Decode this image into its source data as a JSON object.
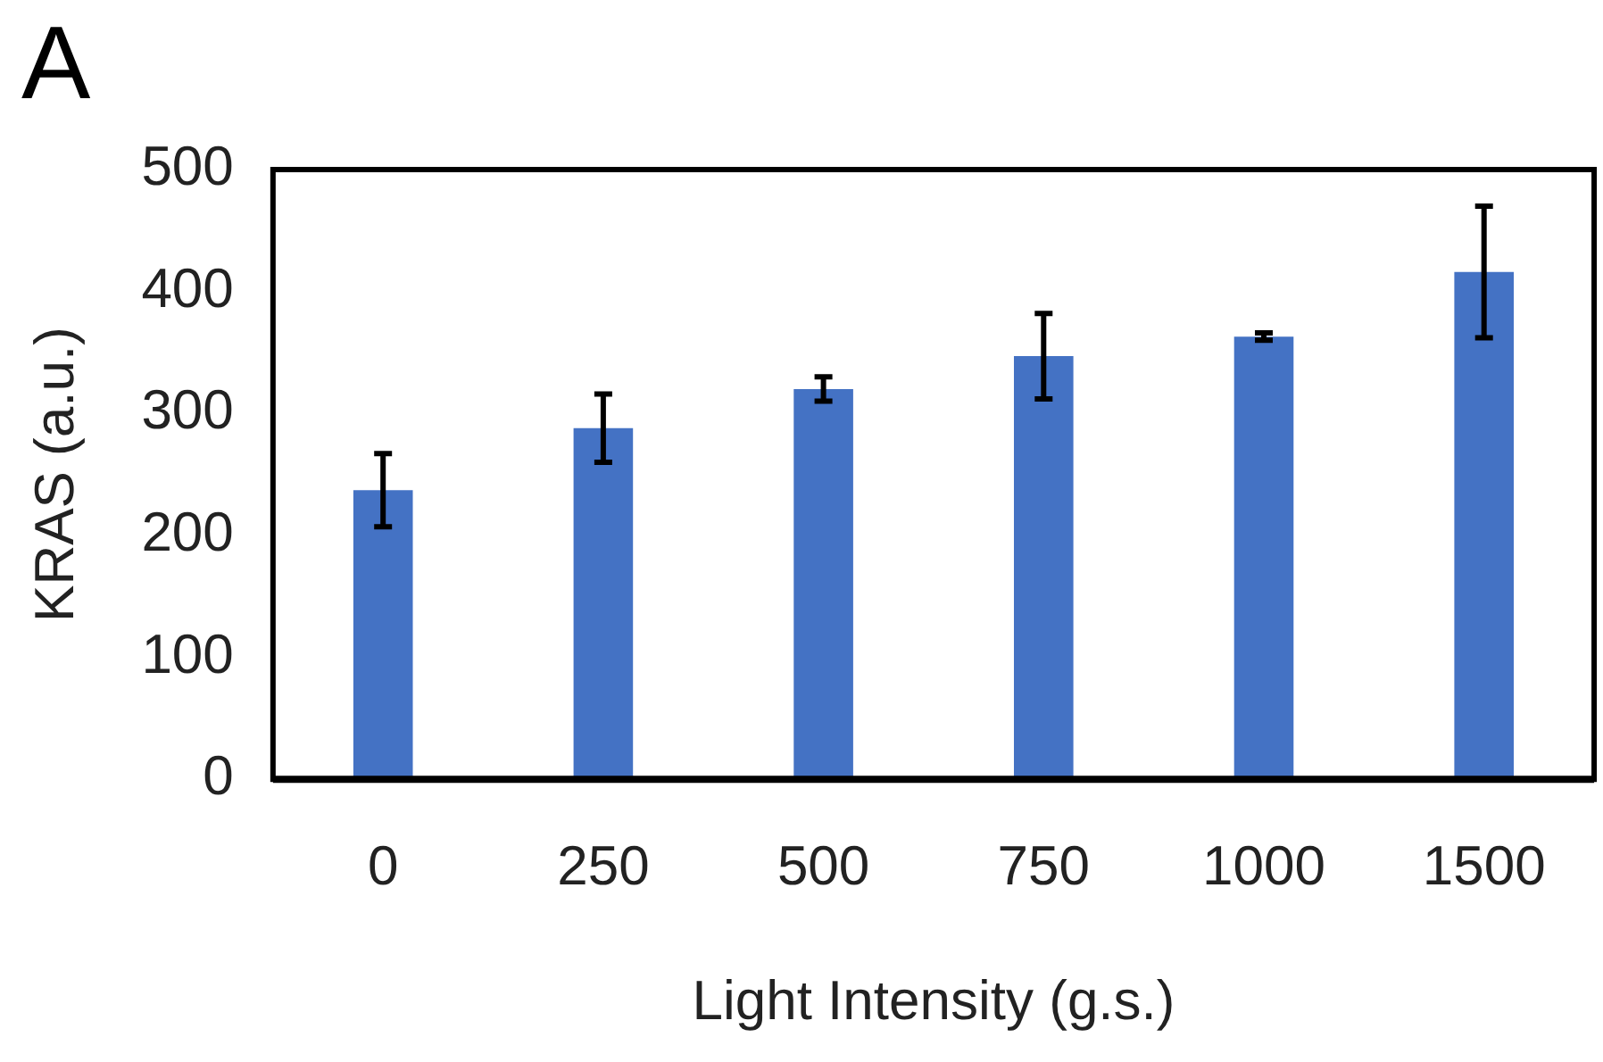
{
  "chart_data": {
    "type": "bar",
    "title": "A",
    "xlabel": "Light Intensity (g.s.)",
    "ylabel": "KRAS (a.u.)",
    "categories": [
      "0",
      "250",
      "500",
      "750",
      "1000",
      "1500"
    ],
    "values": [
      237,
      288,
      320,
      347,
      363,
      416
    ],
    "errors": [
      30,
      28,
      10,
      35,
      3,
      54
    ],
    "color": "#4472c4",
    "ylim": [
      0,
      500
    ],
    "yticks": [
      0,
      100,
      200,
      300,
      400,
      500
    ],
    "grid": false,
    "legend": false
  }
}
